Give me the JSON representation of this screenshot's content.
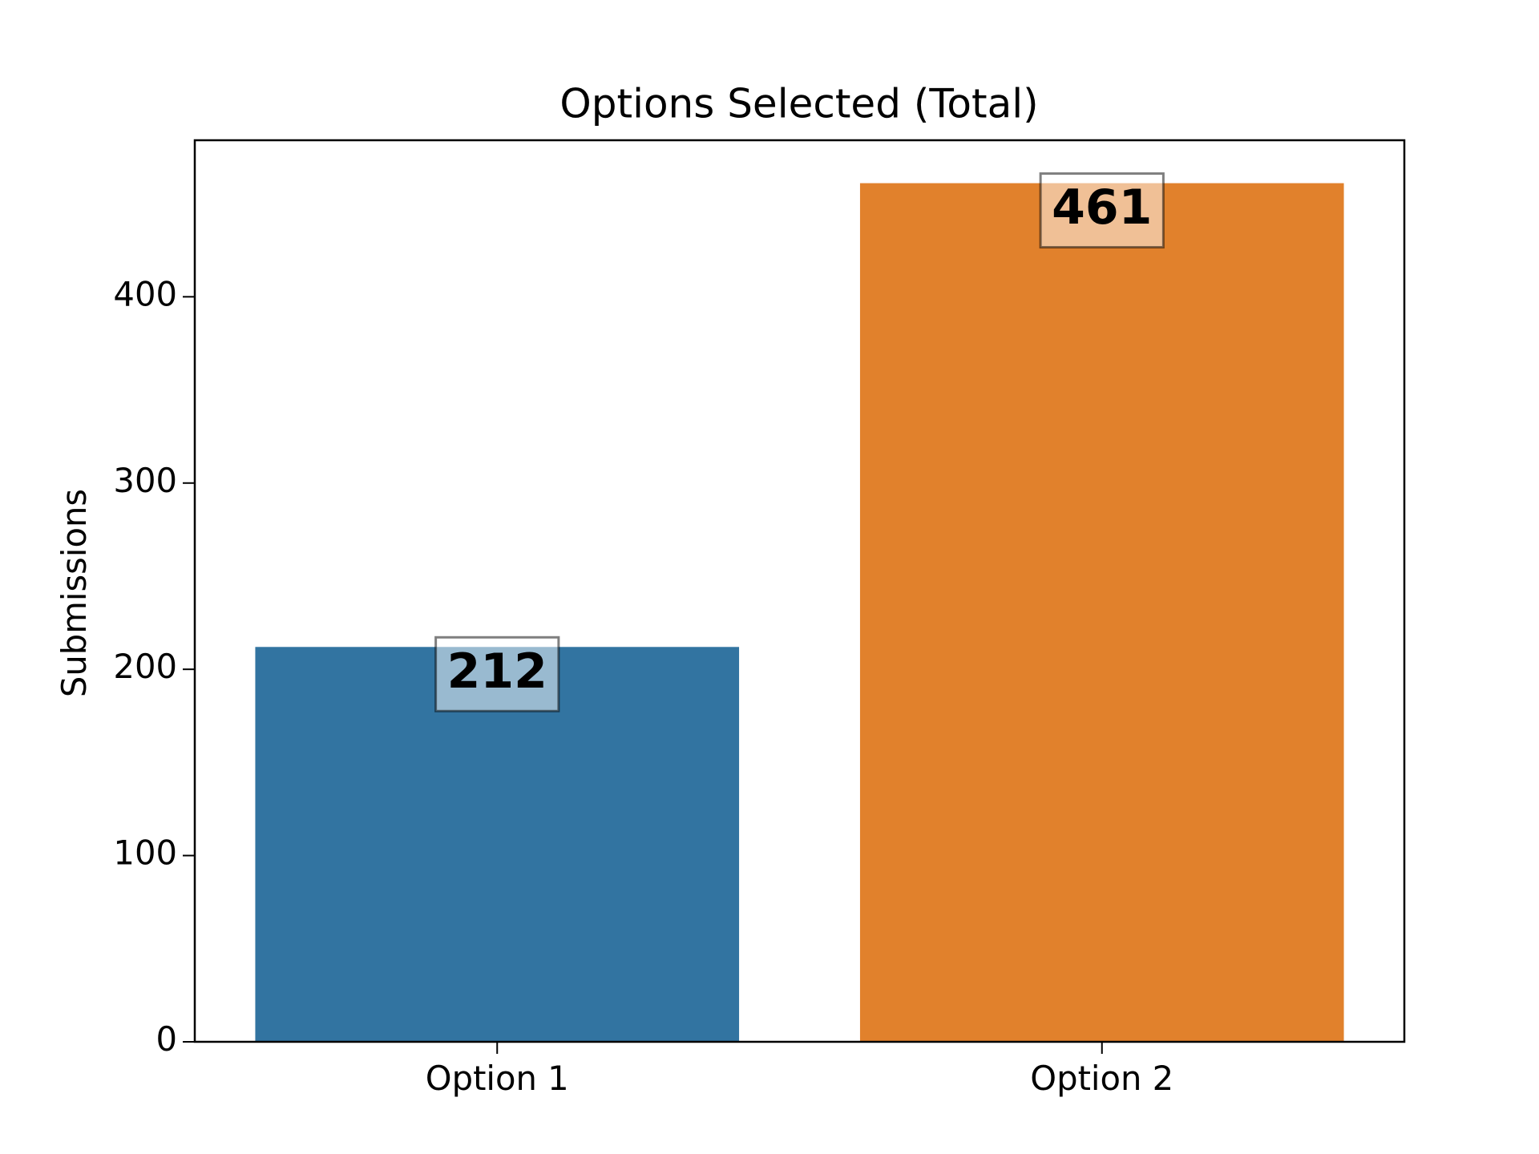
{
  "chart_data": {
    "type": "bar",
    "title": "Options Selected (Total)",
    "ylabel": "Submissions",
    "categories": [
      "Option 1",
      "Option 2"
    ],
    "values": [
      212,
      461
    ],
    "colors": [
      "#3274a1",
      "#e1812c"
    ],
    "ylim": [
      0,
      484.05
    ],
    "yticks": [
      0,
      100,
      200,
      300,
      400
    ],
    "grid": false
  }
}
